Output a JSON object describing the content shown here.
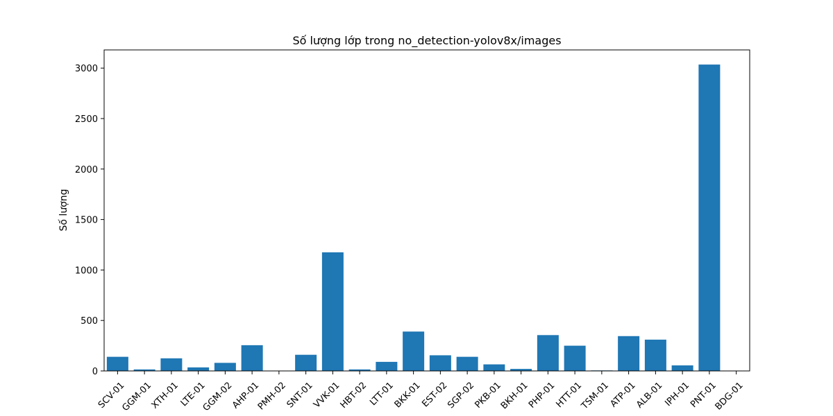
{
  "chart_data": {
    "type": "bar",
    "title": "Số lượng lớp trong no_detection-yolov8x/images",
    "xlabel": "",
    "ylabel": "Số lượng",
    "categories": [
      "SCV-01",
      "GGM-01",
      "XTH-01",
      "LTE-01",
      "GGM-02",
      "AHP-01",
      "PMH-02",
      "SNT-01",
      "VVK-01",
      "HBT-02",
      "LTT-01",
      "BKK-01",
      "EST-02",
      "SGP-02",
      "PKB-01",
      "BKH-01",
      "PHP-01",
      "HTT-01",
      "TSM-01",
      "ATP-01",
      "ALB-01",
      "IPH-01",
      "PNT-01",
      "BDG-01"
    ],
    "values": [
      140,
      15,
      125,
      35,
      80,
      255,
      0,
      160,
      1175,
      15,
      90,
      390,
      155,
      140,
      65,
      20,
      355,
      250,
      5,
      345,
      310,
      55,
      3035,
      0
    ],
    "ylim": [
      0,
      3180
    ],
    "yticks": [
      0,
      500,
      1000,
      1500,
      2000,
      2500,
      3000
    ],
    "grid": false,
    "color": "#1f77b4"
  }
}
